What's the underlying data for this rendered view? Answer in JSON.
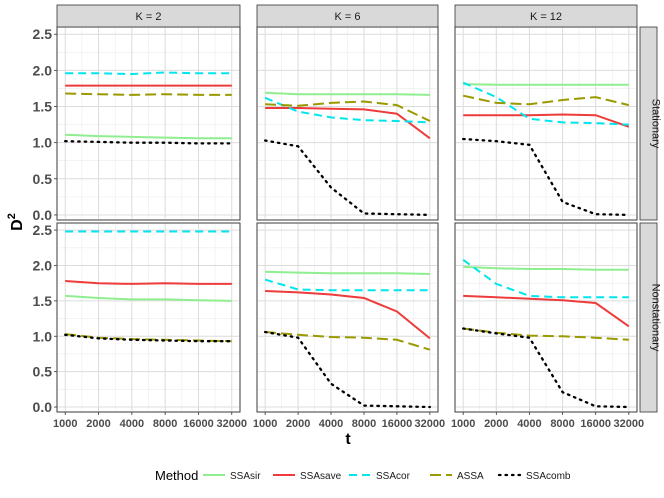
{
  "chart_data": {
    "type": "line",
    "x_label": "t",
    "y_label_base": "D",
    "y_label_sup": "2",
    "x_scale": "log",
    "x": [
      1000,
      2000,
      4000,
      8000,
      16000,
      32000
    ],
    "x_tick_labels": [
      "1000",
      "2000",
      "4000",
      "8000",
      "16000",
      "32000"
    ],
    "y_lim": [
      -0.07,
      2.6
    ],
    "y_ticks": [
      0.0,
      0.5,
      1.0,
      1.5,
      2.0,
      2.5
    ],
    "y_tick_labels": [
      "0.0",
      "0.5",
      "1.0",
      "1.5",
      "2.0",
      "2.5"
    ],
    "grid": true,
    "legend": {
      "position": "bottom",
      "title": "Method",
      "entries": [
        {
          "name": "SSAsir",
          "color": "#90EE90",
          "dash": "solid"
        },
        {
          "name": "SSAsave",
          "color": "#EE3B3B",
          "dash": "solid"
        },
        {
          "name": "SSAcor",
          "color": "#00E5EE",
          "dash": "dashed"
        },
        {
          "name": "ASSA",
          "color": "#9A9A00",
          "dash": "longdash"
        },
        {
          "name": "SSAcomb",
          "color": "#000000",
          "dash": "dotted"
        }
      ]
    },
    "col_strips": [
      "K = 2",
      "K = 6",
      "K = 12"
    ],
    "row_strips": [
      "Stationary",
      "Nonstationary"
    ],
    "panels": [
      {
        "row": 0,
        "col": 0,
        "series": {
          "SSAsir": [
            1.11,
            1.09,
            1.08,
            1.07,
            1.06,
            1.06
          ],
          "SSAsave": [
            1.79,
            1.79,
            1.79,
            1.79,
            1.79,
            1.79
          ],
          "SSAcor": [
            1.96,
            1.96,
            1.95,
            1.97,
            1.96,
            1.96
          ],
          "ASSA": [
            1.68,
            1.67,
            1.66,
            1.67,
            1.66,
            1.66
          ],
          "SSAcomb": [
            1.02,
            1.01,
            1.0,
            1.0,
            0.99,
            0.99
          ]
        }
      },
      {
        "row": 0,
        "col": 1,
        "series": {
          "SSAsir": [
            1.69,
            1.67,
            1.67,
            1.67,
            1.67,
            1.66
          ],
          "SSAsave": [
            1.48,
            1.48,
            1.47,
            1.46,
            1.4,
            1.06
          ],
          "SSAcor": [
            1.62,
            1.43,
            1.35,
            1.31,
            1.3,
            1.28
          ],
          "ASSA": [
            1.53,
            1.51,
            1.55,
            1.57,
            1.52,
            1.3
          ],
          "SSAcomb": [
            1.03,
            0.95,
            0.38,
            0.02,
            0.01,
            0.0
          ]
        }
      },
      {
        "row": 0,
        "col": 2,
        "series": {
          "SSAsir": [
            1.81,
            1.8,
            1.8,
            1.8,
            1.8,
            1.8
          ],
          "SSAsave": [
            1.38,
            1.38,
            1.38,
            1.39,
            1.38,
            1.22
          ],
          "SSAcor": [
            1.83,
            1.63,
            1.33,
            1.28,
            1.27,
            1.25
          ],
          "ASSA": [
            1.65,
            1.55,
            1.53,
            1.59,
            1.63,
            1.52
          ],
          "SSAcomb": [
            1.05,
            1.02,
            0.97,
            0.18,
            0.01,
            0.0
          ]
        }
      },
      {
        "row": 1,
        "col": 0,
        "series": {
          "SSAsir": [
            1.57,
            1.54,
            1.52,
            1.52,
            1.51,
            1.5
          ],
          "SSAsave": [
            1.78,
            1.75,
            1.74,
            1.75,
            1.74,
            1.74
          ],
          "SSAcor": [
            2.48,
            2.48,
            2.48,
            2.48,
            2.48,
            2.48
          ],
          "ASSA": [
            1.03,
            0.98,
            0.96,
            0.95,
            0.94,
            0.93
          ],
          "SSAcomb": [
            1.02,
            0.97,
            0.95,
            0.94,
            0.93,
            0.93
          ]
        }
      },
      {
        "row": 1,
        "col": 1,
        "series": {
          "SSAsir": [
            1.91,
            1.9,
            1.89,
            1.89,
            1.89,
            1.88
          ],
          "SSAsave": [
            1.64,
            1.62,
            1.59,
            1.54,
            1.35,
            0.97
          ],
          "SSAcor": [
            1.8,
            1.66,
            1.65,
            1.65,
            1.65,
            1.65
          ],
          "ASSA": [
            1.06,
            1.02,
            0.99,
            0.98,
            0.95,
            0.81
          ],
          "SSAcomb": [
            1.06,
            0.98,
            0.33,
            0.02,
            0.01,
            0.0
          ]
        }
      },
      {
        "row": 1,
        "col": 2,
        "series": {
          "SSAsir": [
            1.98,
            1.96,
            1.95,
            1.95,
            1.94,
            1.94
          ],
          "SSAsave": [
            1.57,
            1.55,
            1.53,
            1.51,
            1.47,
            1.14
          ],
          "SSAcor": [
            2.08,
            1.74,
            1.57,
            1.55,
            1.55,
            1.55
          ],
          "ASSA": [
            1.11,
            1.05,
            1.01,
            1.0,
            0.98,
            0.95
          ],
          "SSAcomb": [
            1.11,
            1.04,
            0.98,
            0.21,
            0.01,
            0.0
          ]
        }
      }
    ]
  }
}
